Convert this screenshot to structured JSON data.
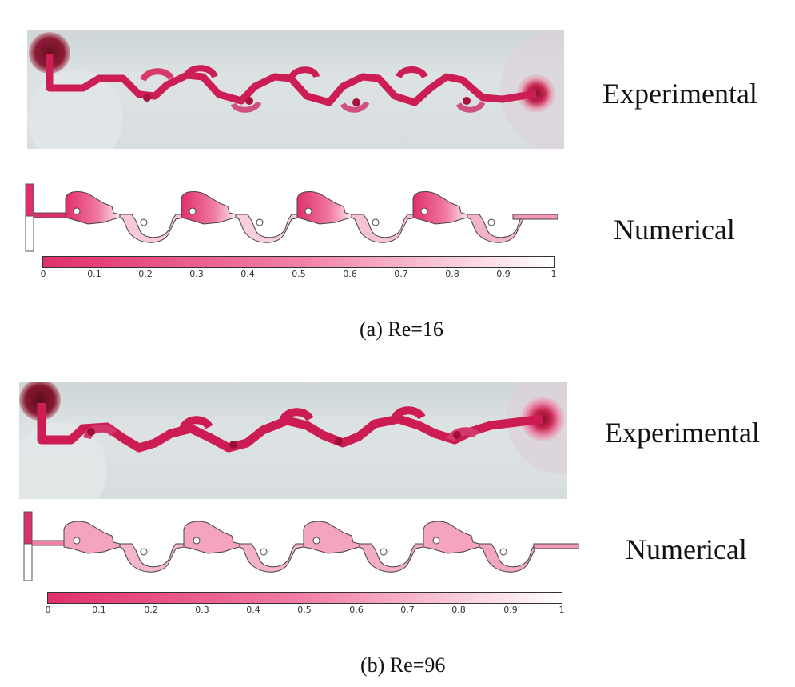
{
  "panels": [
    {
      "experimental_label": "Experimental",
      "numerical_label": "Numerical",
      "caption": "(a)  Re=16",
      "colorbar_ticks": [
        "0",
        "0.1",
        "0.2",
        "0.3",
        "0.4",
        "0.5",
        "0.6",
        "0.7",
        "0.8",
        "0.9",
        "1"
      ]
    },
    {
      "experimental_label": "Experimental",
      "numerical_label": "Numerical",
      "caption": "(b)  Re=96",
      "colorbar_ticks": [
        "0",
        "0.1",
        "0.2",
        "0.3",
        "0.4",
        "0.5",
        "0.6",
        "0.7",
        "0.8",
        "0.9",
        "1"
      ]
    }
  ],
  "colors": {
    "dye": "#d81e5b",
    "dye_dark": "#7a0f2a",
    "colorbar_start": "#e0306a",
    "colorbar_end": "#ffffff"
  }
}
